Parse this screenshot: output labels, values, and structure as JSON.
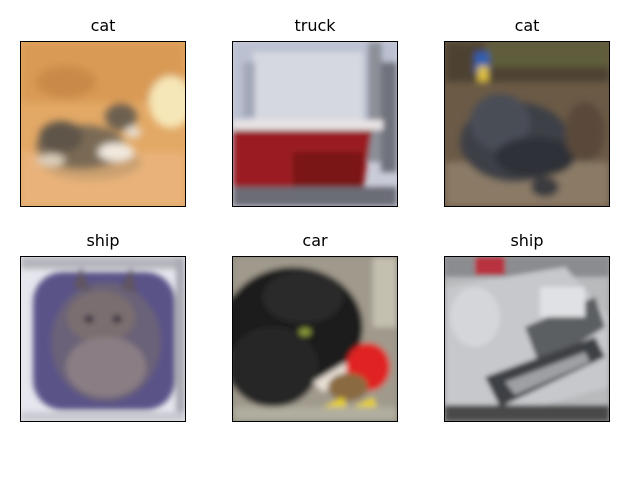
{
  "figure": {
    "panels": [
      {
        "title": "cat"
      },
      {
        "title": "truck"
      },
      {
        "title": "cat"
      },
      {
        "title": "ship"
      },
      {
        "title": "car"
      },
      {
        "title": "ship"
      }
    ]
  }
}
